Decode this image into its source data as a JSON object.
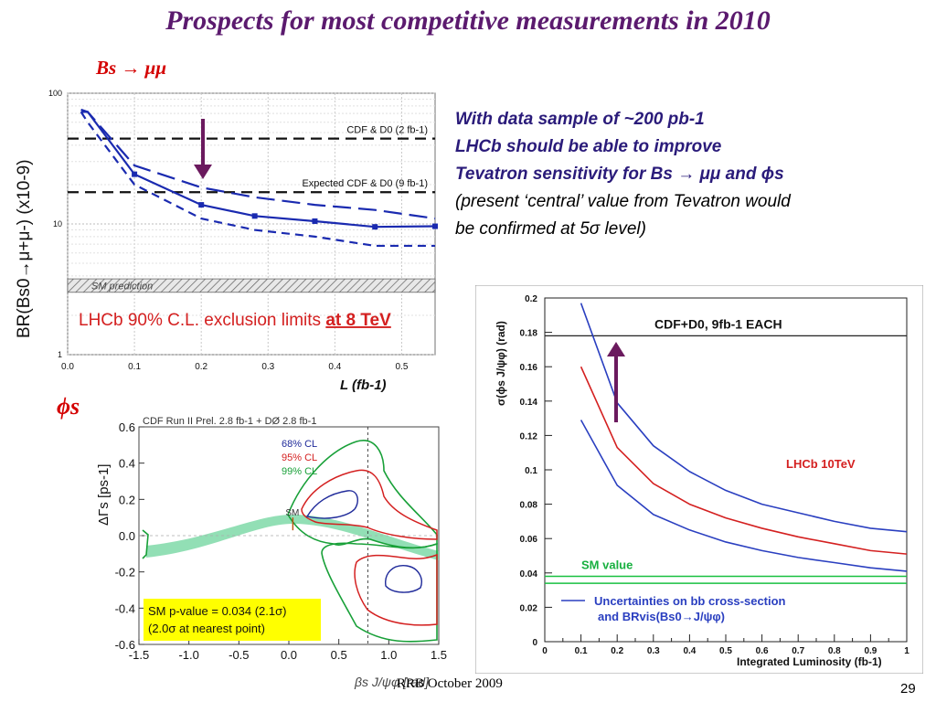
{
  "slide": {
    "title": "Prospects for most competitive measurements in 2010",
    "bs_label": "Bs → μμ",
    "phis_label": "ϕs",
    "right_text": {
      "line1": "With data sample of ~200 pb-1",
      "line2": " LHCb should be able to improve",
      "line3": "Tevatron sensitivity for Bs → μμ and ϕs",
      "line4": "(present ‘central’ value from Tevatron would",
      "line5": "be confirmed at 5σ level)"
    },
    "footer": "RRB October 2009",
    "page_number": "29",
    "colors": {
      "title": "#5b1a6e",
      "accent_red": "#d40000",
      "arrow": "#6b1a5e",
      "text_blue": "#2a1b7a"
    }
  },
  "chart_data": [
    {
      "type": "line",
      "ylabel": "BR(Bs0→μ+μ-) (x10-9)",
      "xlabel": "L (fb-1)",
      "yscale": "log",
      "xlim": [
        0.0,
        0.55
      ],
      "ylim": [
        1,
        100
      ],
      "x_ticks": [
        "0.0",
        "0.1",
        "0.2",
        "0.3",
        "0.4",
        "0.5"
      ],
      "y_ticks": [
        "1",
        "10",
        "100"
      ],
      "reference_lines": [
        {
          "label": "CDF & D0 (2 fb-1)",
          "y": 45
        },
        {
          "label": "Expected CDF & D0 (9 fb-1)",
          "y": 17.5
        }
      ],
      "sm_band": {
        "label": "SM prediction",
        "y_low": 3.0,
        "y_high": 3.8
      },
      "annotation": {
        "text": "LHCb 90% C.L. exclusion limits",
        "highlight": "at 8 TeV"
      },
      "series": [
        {
          "style": "solid",
          "x": [
            0.02,
            0.03,
            0.1,
            0.2,
            0.28,
            0.37,
            0.46,
            0.55
          ],
          "y": [
            72,
            72,
            24,
            14,
            11.5,
            10.5,
            9.5,
            9.6
          ]
        },
        {
          "style": "dashed",
          "x": [
            0.02,
            0.03,
            0.1,
            0.2,
            0.28,
            0.37,
            0.46,
            0.55
          ],
          "y": [
            72,
            60,
            20,
            11,
            9.0,
            8.0,
            6.8,
            6.8
          ]
        },
        {
          "style": "longdash",
          "x": [
            0.02,
            0.03,
            0.1,
            0.2,
            0.28,
            0.37,
            0.46,
            0.55
          ],
          "y": [
            75,
            72,
            28,
            19,
            16,
            14,
            12.8,
            11
          ]
        }
      ]
    },
    {
      "type": "scatter",
      "title": "CDF Run II Prel. 2.8 fb-1 + DØ 2.8 fb-1",
      "ylabel": "ΔΓs [ps-1]",
      "xlabel": "βs J/ψφ [rad]",
      "xlim": [
        -1.5,
        1.5
      ],
      "ylim": [
        -0.6,
        0.6
      ],
      "x_ticks": [
        "-1.5",
        "-1.0",
        "-0.5",
        "0.0",
        "0.5",
        "1.0",
        "1.5"
      ],
      "y_ticks": [
        "0.6",
        "0.4",
        "0.2",
        "0.0",
        "-0.2",
        "-0.4",
        "-0.6"
      ],
      "legend": [
        {
          "label": "68% CL",
          "color": "#1f2a9a"
        },
        {
          "label": "95% CL",
          "color": "#d42020"
        },
        {
          "label": "99% CL",
          "color": "#18a038"
        }
      ],
      "sm_marker": {
        "label": "SM",
        "x": 0.04,
        "y": 0.1
      },
      "vertical_line_x": 0.79,
      "pvalue_box": {
        "line1": "SM p-value = 0.034 (2.1σ)",
        "line2": "(2.0σ at nearest point)"
      }
    },
    {
      "type": "line",
      "ylabel": "σ(ϕs J/ψφ) (rad)",
      "xlabel": "Integrated Luminosity (fb-1)",
      "xlim": [
        0,
        1
      ],
      "ylim": [
        0,
        0.2
      ],
      "x_ticks": [
        "0",
        "0.1",
        "0.2",
        "0.3",
        "0.4",
        "0.5",
        "0.6",
        "0.7",
        "0.8",
        "0.9",
        "1"
      ],
      "y_ticks": [
        "0",
        "0.02",
        "0.04",
        "0.06",
        "0.08",
        "0.1",
        "0.12",
        "0.14",
        "0.16",
        "0.18",
        "0.2"
      ],
      "reference_line": {
        "label": "CDF+D0, 9fb-1 EACH",
        "y": 0.178
      },
      "sm_band": {
        "label": "SM value",
        "y_low": 0.034,
        "y_high": 0.038
      },
      "series_label": "LHCb 10TeV",
      "legend_text": {
        "line1": "Uncertainties on bb cross-section",
        "line2": "and BRvis(Bs0→J/ψφ)"
      },
      "series": [
        {
          "color": "#2a3fc0",
          "x": [
            0.1,
            0.2,
            0.3,
            0.4,
            0.5,
            0.6,
            0.7,
            0.8,
            0.9,
            1.0
          ],
          "y": [
            0.197,
            0.139,
            0.114,
            0.099,
            0.088,
            0.08,
            0.075,
            0.07,
            0.066,
            0.064
          ]
        },
        {
          "color": "#d42020",
          "x": [
            0.1,
            0.2,
            0.3,
            0.4,
            0.5,
            0.6,
            0.7,
            0.8,
            0.9,
            1.0
          ],
          "y": [
            0.16,
            0.113,
            0.092,
            0.08,
            0.072,
            0.066,
            0.061,
            0.057,
            0.053,
            0.051
          ]
        },
        {
          "color": "#2a3fc0",
          "x": [
            0.1,
            0.2,
            0.3,
            0.4,
            0.5,
            0.6,
            0.7,
            0.8,
            0.9,
            1.0
          ],
          "y": [
            0.129,
            0.091,
            0.074,
            0.065,
            0.058,
            0.053,
            0.049,
            0.046,
            0.043,
            0.041
          ]
        }
      ]
    }
  ]
}
